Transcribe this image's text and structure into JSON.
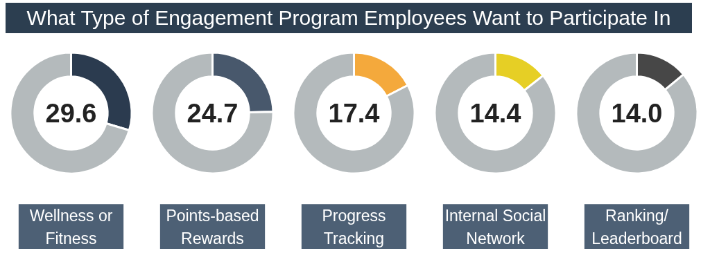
{
  "chart_data": [
    {
      "type": "donut",
      "title": "What Type of Engagement Program Employees Want to Participate In",
      "xlabel": "Wellness or\nFitness",
      "categories": [
        null,
        null
      ],
      "values": [
        29.6,
        70.4
      ],
      "colors": [
        "#2b3b4f",
        "#b4babc"
      ],
      "annotations": [
        "29.6"
      ]
    },
    {
      "type": "donut",
      "xlabel": "Points-based\nRewards",
      "categories": [
        null,
        null
      ],
      "values": [
        24.7,
        75.3
      ],
      "colors": [
        "#48586c",
        "#b4babc"
      ],
      "annotations": [
        "24.7"
      ]
    },
    {
      "type": "donut",
      "xlabel": "Progress\nTracking",
      "categories": [
        null,
        null
      ],
      "values": [
        17.4,
        82.6
      ],
      "colors": [
        "#f4a93c",
        "#b4babc"
      ],
      "annotations": [
        "17.4"
      ]
    },
    {
      "type": "donut",
      "xlabel": "Internal Social\nNetwork",
      "categories": [
        null,
        null
      ],
      "values": [
        14.4,
        85.6
      ],
      "colors": [
        "#e6cf25",
        "#b4babc"
      ],
      "annotations": [
        "14.4"
      ]
    },
    {
      "type": "donut",
      "xlabel": "Ranking/\nLeaderboard",
      "categories": [
        null,
        null
      ],
      "values": [
        14.0,
        86.0
      ],
      "colors": [
        "#474747",
        "#b4babc"
      ],
      "annotations": [
        "14.0"
      ]
    }
  ]
}
